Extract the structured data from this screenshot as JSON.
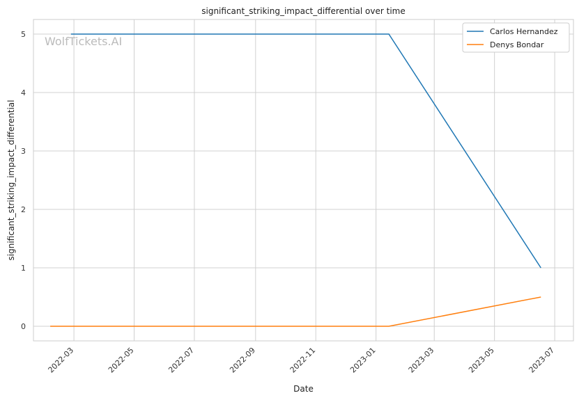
{
  "chart_data": {
    "type": "line",
    "title": "significant_striking_impact_differential over time",
    "xlabel": "Date",
    "ylabel": "significant_striking_impact_differential",
    "watermark": "WolfTickets.AI",
    "x_ticks": [
      "2022-03",
      "2022-05",
      "2022-07",
      "2022-09",
      "2022-11",
      "2023-01",
      "2023-03",
      "2023-05",
      "2023-07"
    ],
    "y_ticks": [
      0,
      1,
      2,
      3,
      4,
      5
    ],
    "ylim": [
      -0.25,
      5.25
    ],
    "xlim": [
      "2022-01-19",
      "2023-07-20"
    ],
    "grid": true,
    "legend_position": "top-right",
    "series": [
      {
        "name": "Carlos Hernandez",
        "color": "#1f77b4",
        "points": [
          {
            "x": "2022-02-26",
            "y": 5
          },
          {
            "x": "2023-01-14",
            "y": 5
          },
          {
            "x": "2023-06-17",
            "y": 1
          }
        ]
      },
      {
        "name": "Denys Bondar",
        "color": "#ff7f0e",
        "points": [
          {
            "x": "2022-02-05",
            "y": 0
          },
          {
            "x": "2023-01-14",
            "y": 0
          },
          {
            "x": "2023-06-17",
            "y": 0.5
          }
        ]
      }
    ]
  }
}
